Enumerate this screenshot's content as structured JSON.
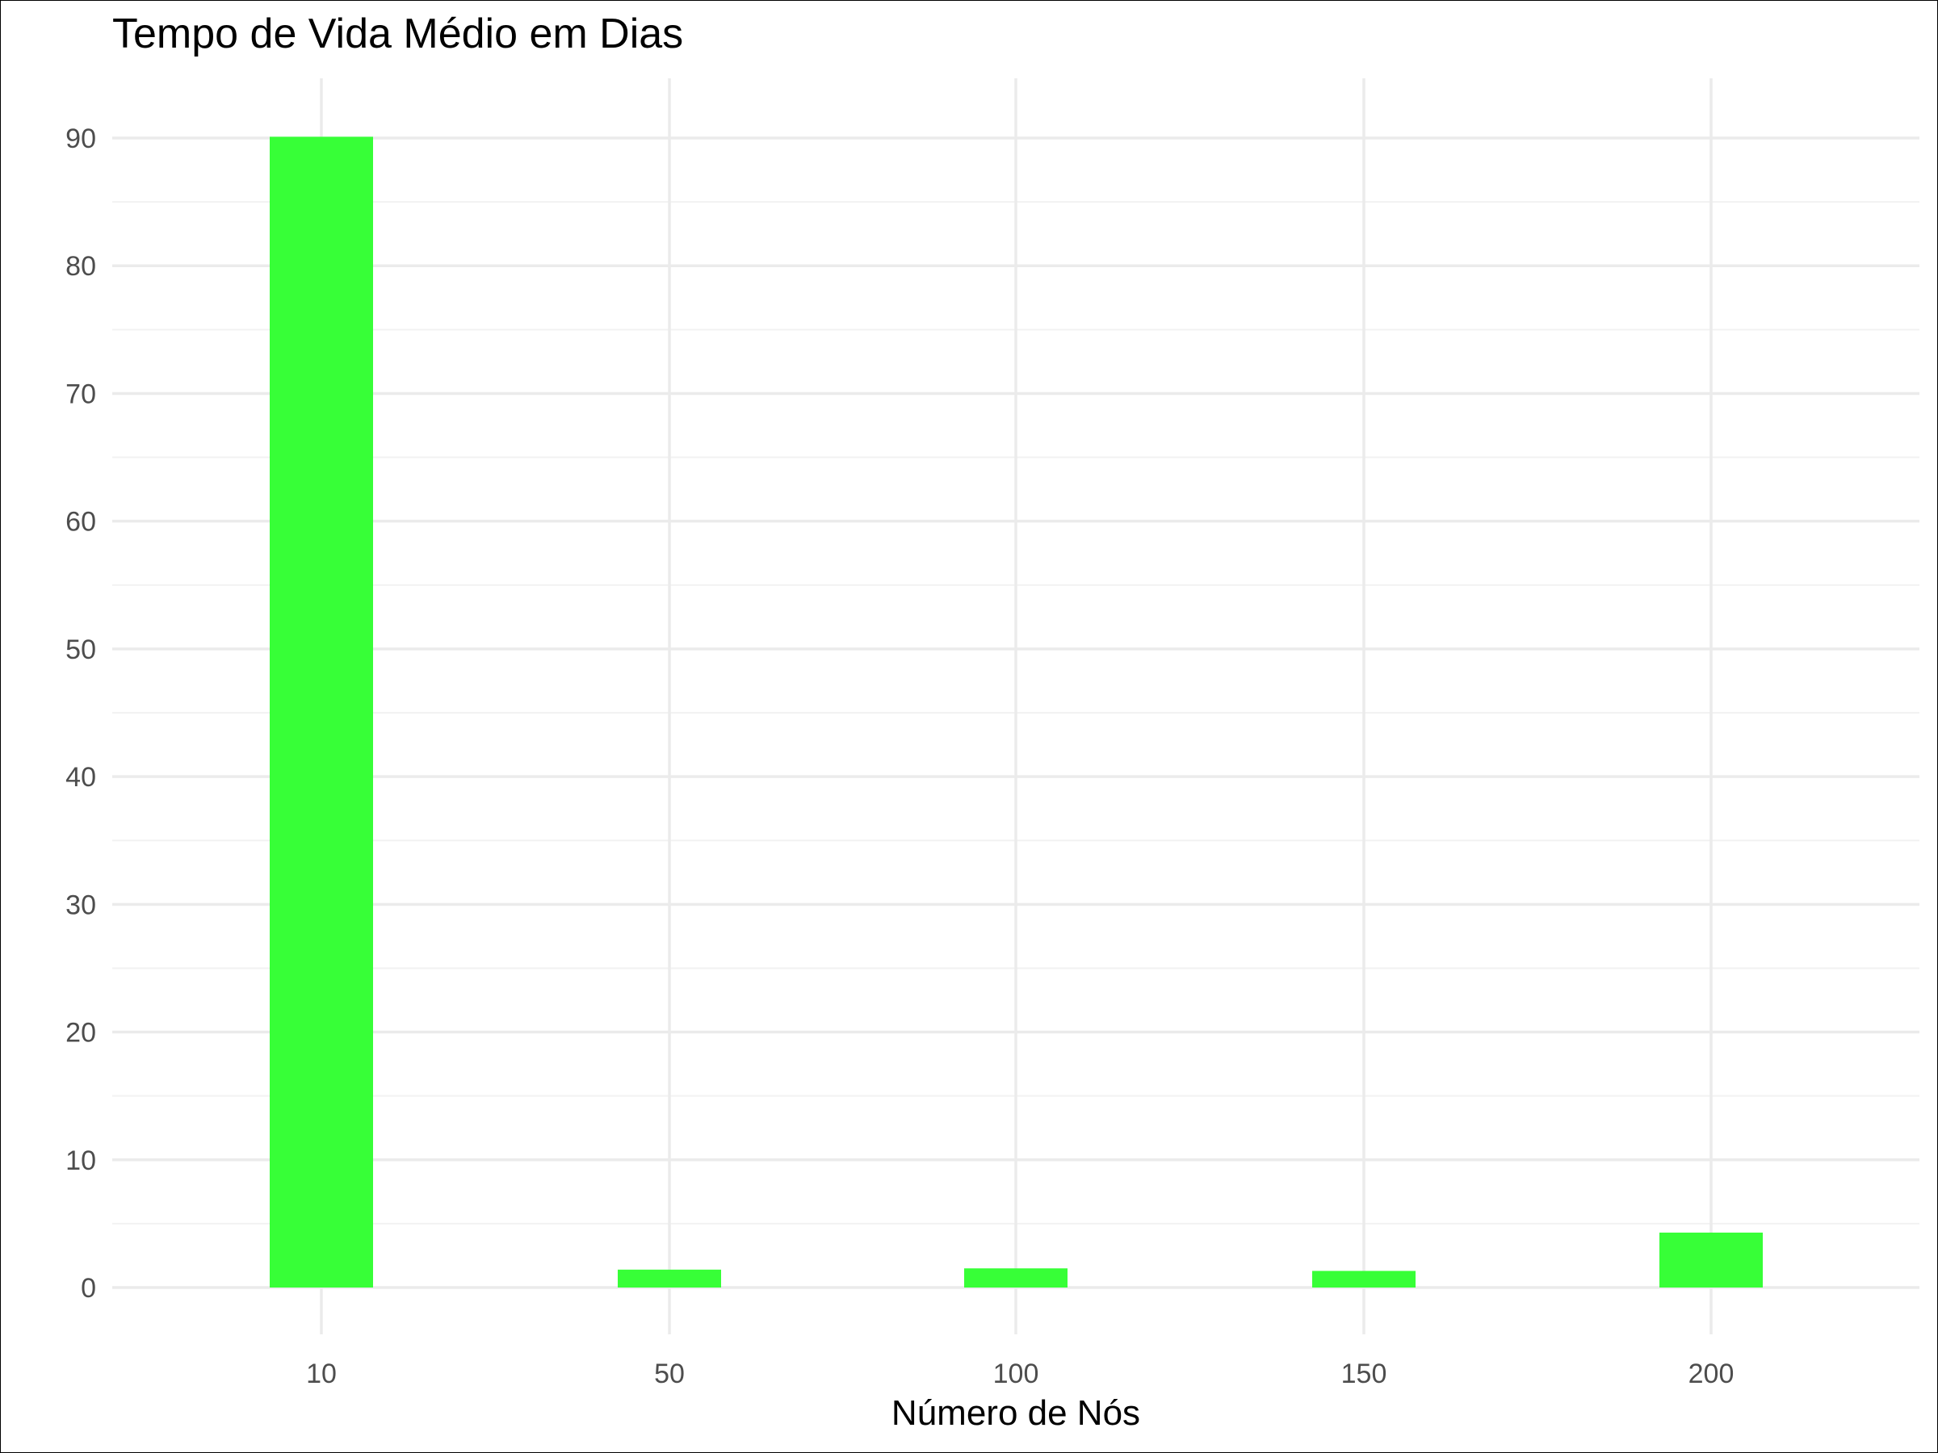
{
  "chart_data": {
    "type": "bar",
    "title": "Tempo de Vida Médio em Dias",
    "xlabel": "Número de Nós",
    "ylabel": "",
    "categories": [
      "10",
      "50",
      "100",
      "150",
      "200"
    ],
    "x": [
      10,
      50,
      100,
      150,
      200
    ],
    "values": [
      90.1,
      1.4,
      1.5,
      1.3,
      4.3
    ],
    "ylim": [
      0,
      90
    ],
    "yticks": [
      0,
      10,
      20,
      30,
      40,
      50,
      60,
      70,
      80,
      90
    ],
    "xticks": [
      10,
      50,
      100,
      150,
      200
    ],
    "grid": true,
    "legend": "none",
    "bar_color": "#33ff33"
  }
}
